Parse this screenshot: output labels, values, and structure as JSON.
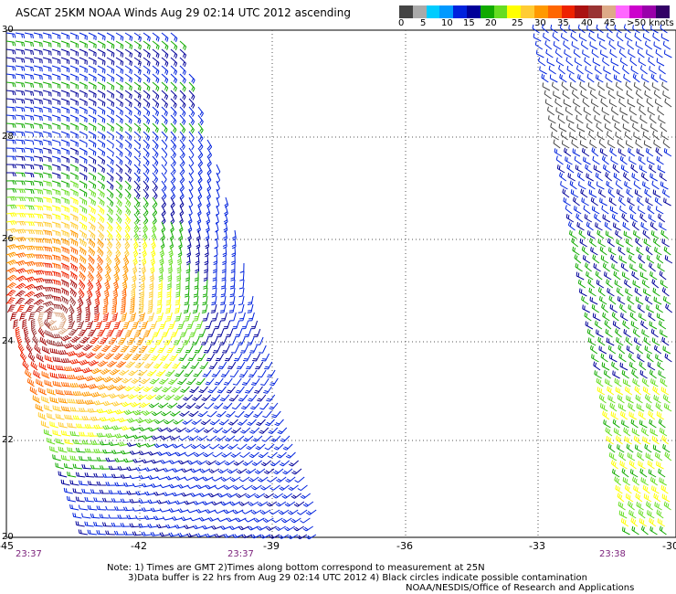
{
  "title": "ASCAT 25KM NOAA Winds Aug 29 02:14 UTC 2012 ascending",
  "scale": {
    "colors": [
      "#444444",
      "#aaaaaa",
      "#00ccff",
      "#0099ff",
      "#0022dd",
      "#000099",
      "#11aa00",
      "#66dd22",
      "#ffff00",
      "#ffcc33",
      "#ff9900",
      "#ff6600",
      "#ee2200",
      "#aa1111",
      "#993333",
      "#ddaa88",
      "#ff66ff",
      "#cc00cc",
      "#9900aa",
      "#330066"
    ],
    "labels": [
      "0",
      "5",
      "10",
      "15",
      "20",
      "25",
      "30",
      "35",
      "40",
      "45"
    ],
    "unit": ">50 knots"
  },
  "axes": {
    "lat_labels": [
      "30",
      "28",
      "26",
      "24",
      "22",
      "20"
    ],
    "lon_labels": [
      "-45",
      "-42",
      "-39",
      "-36",
      "-33",
      "-30"
    ]
  },
  "swath_times": [
    "23:37",
    "23:37",
    "23:38"
  ],
  "notes": [
    "Note: 1) Times are GMT 2)Times along bottom correspond to measurement at 25N",
    "3)Data buffer is 22 hrs from Aug 29 02:14 UTC 2012 4) Black circles indicate possible contamination",
    "NOAA/NESDIS/Office of Research and Applications"
  ]
}
